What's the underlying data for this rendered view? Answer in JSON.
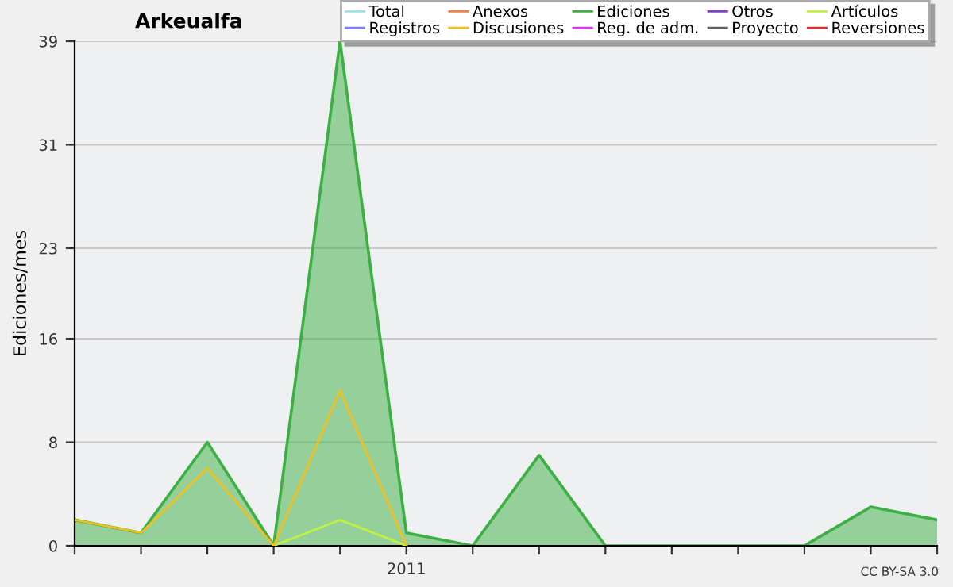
{
  "chart_data": {
    "type": "line",
    "title": "Arkeualfa",
    "ylabel": "Ediciones/mes",
    "categories": [
      null,
      null,
      null,
      null,
      null,
      "2011",
      null,
      null,
      null,
      null,
      null,
      null,
      null,
      null
    ],
    "series": [
      {
        "name": "Total",
        "color": "#a0e0e0",
        "values": [
          null,
          null,
          null,
          null,
          null,
          null,
          null,
          null,
          null,
          null,
          null,
          null,
          null,
          null
        ]
      },
      {
        "name": "Anexos",
        "color": "#f08040",
        "values": [
          null,
          null,
          null,
          null,
          null,
          null,
          null,
          null,
          null,
          null,
          null,
          null,
          null,
          null
        ]
      },
      {
        "name": "Ediciones",
        "type": "area",
        "color": "#3cb043",
        "values": [
          2,
          1,
          8,
          0,
          39,
          1,
          0,
          7,
          0,
          0,
          0,
          0,
          3,
          2
        ]
      },
      {
        "name": "Otros",
        "color": "#8040d0",
        "values": [
          null,
          null,
          null,
          null,
          null,
          null,
          null,
          null,
          null,
          null,
          null,
          null,
          null,
          null
        ]
      },
      {
        "name": "Artículos",
        "color": "#c0f040",
        "values": [
          null,
          null,
          null,
          0,
          2,
          0,
          null,
          null,
          null,
          null,
          null,
          null,
          null,
          null
        ]
      },
      {
        "name": "Registros",
        "color": "#8080f0",
        "values": [
          null,
          null,
          null,
          null,
          null,
          null,
          null,
          null,
          null,
          null,
          null,
          null,
          null,
          null
        ]
      },
      {
        "name": "Discusiones",
        "color": "#f0c020",
        "values": [
          2,
          1,
          6,
          0,
          12,
          0,
          null,
          null,
          null,
          null,
          null,
          null,
          null,
          null
        ]
      },
      {
        "name": "Reg. de adm.",
        "color": "#d040e0",
        "values": [
          null,
          null,
          null,
          null,
          null,
          null,
          null,
          null,
          null,
          null,
          null,
          null,
          null,
          null
        ]
      },
      {
        "name": "Proyecto",
        "color": "#606060",
        "values": [
          null,
          null,
          null,
          null,
          null,
          null,
          null,
          null,
          null,
          null,
          null,
          null,
          null,
          null
        ]
      },
      {
        "name": "Reversiones",
        "color": "#e03030",
        "values": [
          null,
          null,
          null,
          null,
          null,
          null,
          null,
          null,
          null,
          null,
          null,
          null,
          null,
          null
        ]
      }
    ],
    "ylim": [
      0,
      39
    ],
    "yticks": [
      0,
      8,
      16,
      23,
      31,
      39
    ],
    "grid": "y",
    "legend": "top right",
    "annotations": [
      "CC BY-SA 3.0"
    ]
  }
}
